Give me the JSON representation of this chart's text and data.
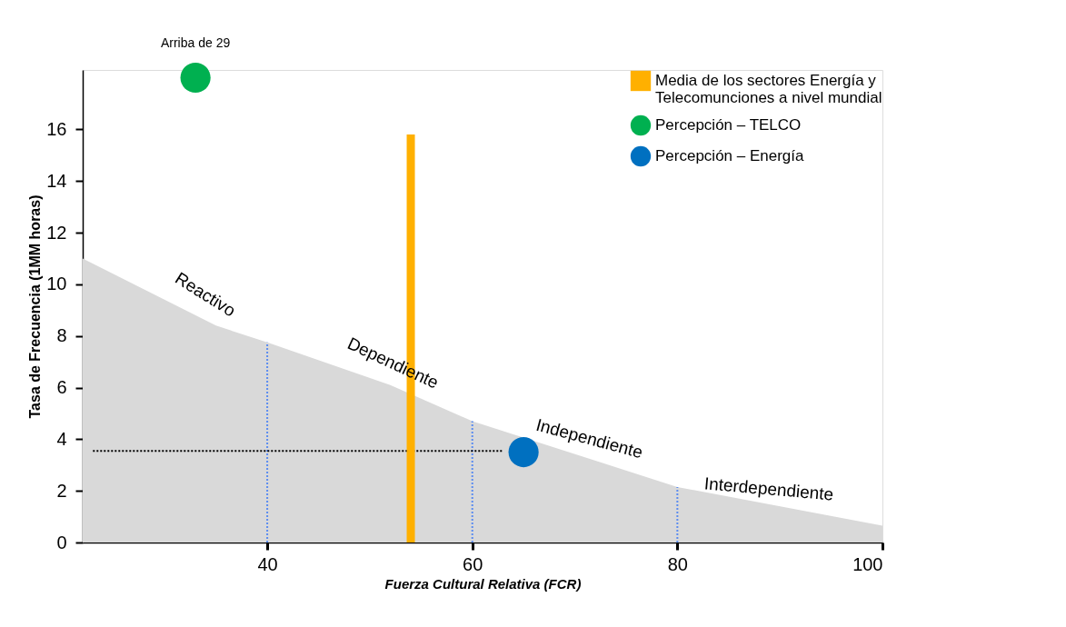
{
  "chart_data": {
    "type": "bar",
    "xlabel": "Fuerza Cultural Relativa (FCR)",
    "ylabel": "Tasa de Frecuencia (1MM horas)",
    "xlim": [
      22,
      100
    ],
    "ylim": [
      0,
      18.3
    ],
    "xticks": [
      40,
      60,
      80,
      100
    ],
    "yticks": [
      0,
      2,
      4,
      6,
      8,
      10,
      12,
      14,
      16
    ],
    "grid": false,
    "legend": "top right",
    "series": [
      {
        "type": "area",
        "color": "#d9d9d9",
        "x": [
          22,
          35,
          40,
          52,
          60,
          80,
          100
        ],
        "values": [
          11,
          8.4,
          7.75,
          6.1,
          4.7,
          2.15,
          0.65
        ]
      },
      {
        "type": "line",
        "color": "#5b8cf0",
        "line_style": "dotted",
        "x": [
          40,
          40
        ],
        "values": [
          0,
          7.75
        ]
      },
      {
        "type": "line",
        "color": "#5b8cf0",
        "line_style": "dotted",
        "x": [
          60,
          60
        ],
        "values": [
          0,
          4.7
        ]
      },
      {
        "type": "line",
        "color": "#5b8cf0",
        "line_style": "dotted",
        "x": [
          80,
          80
        ],
        "values": [
          0,
          2.15
        ]
      },
      {
        "type": "line",
        "color": "#000000",
        "line_style": "dotted",
        "x": [
          23,
          63
        ],
        "values": [
          3.55,
          3.55
        ]
      },
      {
        "name": "Media de los sectores Energía y Telecomunciones a nivel mundial",
        "color": "#ffb000",
        "x": [
          54
        ],
        "values": [
          15.8
        ]
      },
      {
        "type": "scatter",
        "marker": "circle",
        "name": "Percepción – TELCO",
        "color": "#00b050",
        "x": [
          33
        ],
        "values": [
          18
        ]
      },
      {
        "type": "scatter",
        "marker": "circle",
        "name": "Percepción – Energía",
        "color": "#0070c0",
        "x": [
          65
        ],
        "values": [
          3.5
        ]
      }
    ],
    "annotations": [
      {
        "text": "Arriba de 29",
        "x": 33,
        "y": 18
      },
      {
        "text": "Reactivo",
        "x": 33,
        "y": 9.0
      },
      {
        "text": "Dependiente",
        "x": 51.5,
        "y": 6.3
      },
      {
        "text": "Independiente",
        "x": 71,
        "y": 3.4
      },
      {
        "text": "Interdependiente",
        "x": 88.8,
        "y": 1.5
      }
    ]
  }
}
